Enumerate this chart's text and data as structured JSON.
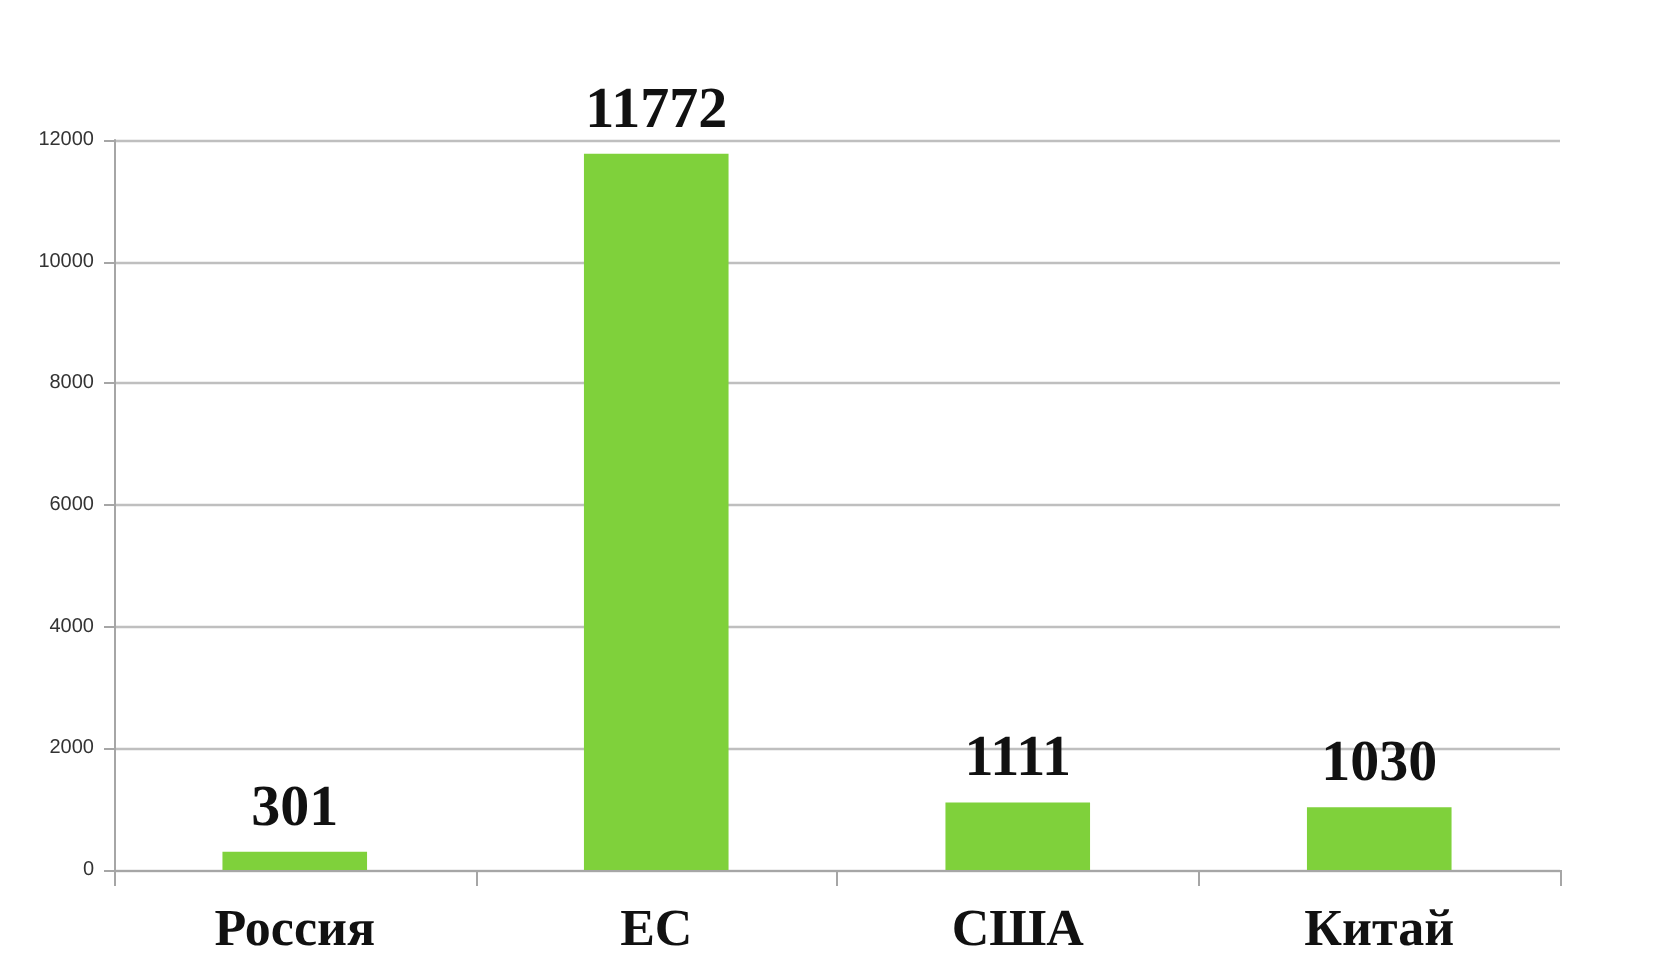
{
  "chart_data": {
    "type": "bar",
    "categories": [
      "Россия",
      "ЕС",
      "США",
      "Китай"
    ],
    "values": [
      301,
      11772,
      1111,
      1030
    ],
    "color": "#7fd13b",
    "ylim": [
      0,
      12000
    ],
    "yticks": [
      0,
      2000,
      4000,
      6000,
      8000,
      10000,
      12000
    ],
    "grid": "y",
    "data_labels": true
  }
}
